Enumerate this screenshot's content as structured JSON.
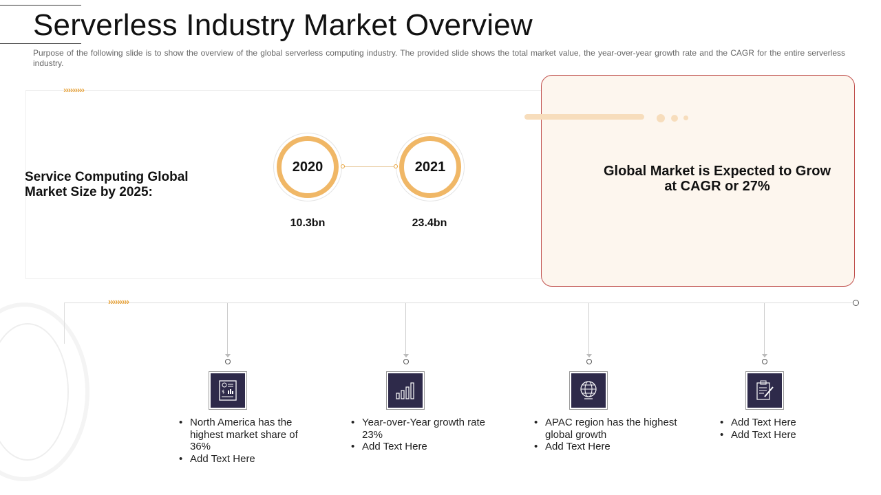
{
  "header": {
    "title": "Serverless Industry Market Overview",
    "subtitle": "Purpose of the following slide is to show the overview  of the global serverless  computing industry. The provided  slide shows the total market value,  the year-over-year  growth rate and the CAGR for the entire serverless industry."
  },
  "market": {
    "label": "Service Computing Global Market Size by 2025:",
    "chevrons": "›››››››››",
    "years": [
      {
        "year": "2020",
        "value": "10.3bn"
      },
      {
        "year": "2021",
        "value": "23.4bn"
      }
    ]
  },
  "cagr": {
    "text": "Global Market is Expected to Grow at CAGR or 27%"
  },
  "timeline": {
    "chevrons": "›››››››››",
    "items": [
      {
        "icon": "dollar-report-icon",
        "bullets": [
          "North America has the highest market share of 36%",
          "Add Text Here"
        ]
      },
      {
        "icon": "bar-chart-icon",
        "bullets": [
          "Year-over-Year growth rate 23%",
          "Add Text Here"
        ]
      },
      {
        "icon": "globe-icon",
        "bullets": [
          "APAC region has the highest global growth",
          "Add Text Here"
        ]
      },
      {
        "icon": "clipboard-icon",
        "bullets": [
          "Add Text Here",
          "Add Text Here"
        ]
      }
    ]
  },
  "colors": {
    "accent_orange": "#f0b766",
    "card_border": "#c0504d",
    "card_bg": "#fdf6ee",
    "icon_bg": "#2e2a4a"
  }
}
